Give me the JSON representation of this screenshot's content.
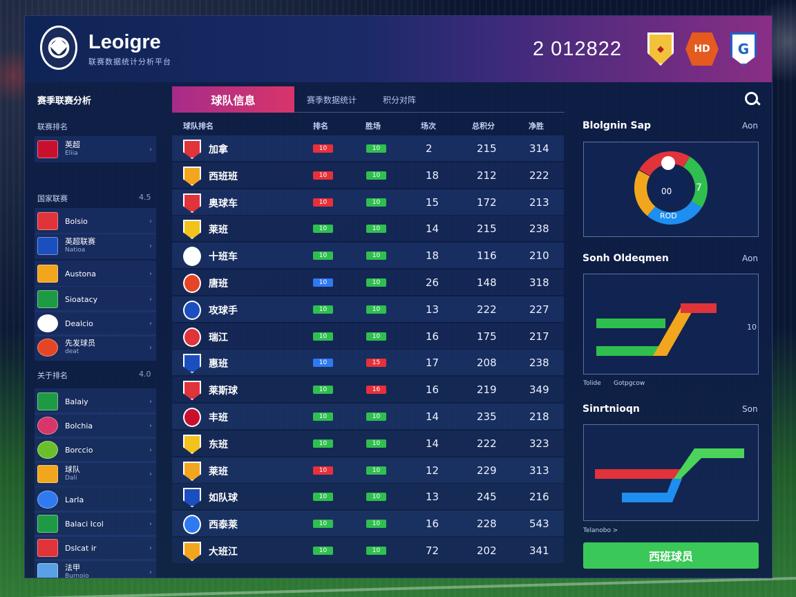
{
  "header": {
    "brand": "Leoigre",
    "subtitle": "联赛数据统计分析平台",
    "score": "2 012822",
    "badges": [
      "shield-badge",
      "orange-club-badge",
      "blue-club-badge"
    ],
    "badge_text": [
      "◆",
      "HD",
      "G"
    ]
  },
  "sidebar": {
    "title": "赛季联赛分析",
    "sections": [
      {
        "label": "联赛排名",
        "count": "",
        "items": [
          {
            "name": "英超",
            "sub": "Eliia",
            "color": "#c8102e",
            "round": false
          }
        ]
      },
      {
        "label": "国家联赛",
        "count": "4.5",
        "items": [
          {
            "name": "Bolsio",
            "sub": "",
            "color": "#e0333a",
            "round": false
          },
          {
            "name": "英超联赛",
            "sub": "Natioa",
            "color": "#1b4fbf",
            "round": false
          },
          {
            "name": "Austona",
            "sub": "",
            "color": "#f2a61d",
            "round": false
          },
          {
            "name": "Sioatacy",
            "sub": "",
            "color": "#1f9a44",
            "round": false
          },
          {
            "name": "Dealcio",
            "sub": "",
            "color": "#ffffff",
            "round": true
          },
          {
            "name": "先发球员",
            "sub": "deat",
            "color": "#e64525",
            "round": true
          }
        ]
      },
      {
        "label": "关于排名",
        "count": "4.0",
        "items": [
          {
            "name": "Balaiy",
            "sub": "",
            "color": "#1f9a44",
            "round": false
          },
          {
            "name": "Bolchia",
            "sub": "",
            "color": "#d8356a",
            "round": true
          },
          {
            "name": "Borccio",
            "sub": "",
            "color": "#6bbf2a",
            "round": true
          },
          {
            "name": "球队",
            "sub": "Dali",
            "color": "#f2a61d",
            "round": false
          },
          {
            "name": "Larla",
            "sub": "",
            "color": "#2f7af0",
            "round": true
          },
          {
            "name": "Balaci Icol",
            "sub": "",
            "color": "#1f9a44",
            "round": false
          },
          {
            "name": "Dslcat ir",
            "sub": "",
            "color": "#e0333a",
            "round": false
          },
          {
            "name": "法甲",
            "sub": "Burnoio",
            "color": "#5aa0e6",
            "round": false
          }
        ]
      }
    ]
  },
  "tabs": {
    "active": "球队信息",
    "others": [
      "赛季数据统计",
      "积分对阵"
    ]
  },
  "table": {
    "columns": [
      "球队排名",
      "排名",
      "胜场",
      "场次",
      "总积分",
      "净胜"
    ],
    "rows": [
      {
        "team": "加拿",
        "crest": "#e0333a",
        "round": false,
        "w": "10",
        "wc": "red",
        "d": "10",
        "dc": "green",
        "rank": "2",
        "pts": "215",
        "gd": "314"
      },
      {
        "team": "西班班",
        "crest": "#f2a61d",
        "round": false,
        "w": "10",
        "wc": "red",
        "d": "10",
        "dc": "green",
        "rank": "18",
        "pts": "212",
        "gd": "222"
      },
      {
        "team": "奥球车",
        "crest": "#e0333a",
        "round": false,
        "w": "10",
        "wc": "red",
        "d": "10",
        "dc": "green",
        "rank": "15",
        "pts": "172",
        "gd": "213"
      },
      {
        "team": "莱班",
        "crest": "#f2c21d",
        "round": false,
        "w": "10",
        "wc": "green",
        "d": "10",
        "dc": "green",
        "rank": "14",
        "pts": "215",
        "gd": "238"
      },
      {
        "team": "十班车",
        "crest": "#ffffff",
        "round": true,
        "w": "10",
        "wc": "green",
        "d": "10",
        "dc": "green",
        "rank": "18",
        "pts": "116",
        "gd": "210"
      },
      {
        "team": "唐班",
        "crest": "#e64525",
        "round": true,
        "w": "10",
        "wc": "blue",
        "d": "10",
        "dc": "green",
        "rank": "26",
        "pts": "148",
        "gd": "318"
      },
      {
        "team": "攻球手",
        "crest": "#1b4fbf",
        "round": true,
        "w": "10",
        "wc": "green",
        "d": "10",
        "dc": "green",
        "rank": "13",
        "pts": "222",
        "gd": "227"
      },
      {
        "team": "瑞江",
        "crest": "#e0333a",
        "round": true,
        "w": "10",
        "wc": "green",
        "d": "10",
        "dc": "green",
        "rank": "16",
        "pts": "175",
        "gd": "217"
      },
      {
        "team": "惠班",
        "crest": "#1b4fbf",
        "round": false,
        "w": "10",
        "wc": "blue",
        "d": "15",
        "dc": "red",
        "rank": "17",
        "pts": "208",
        "gd": "238"
      },
      {
        "team": "莱斯球",
        "crest": "#e0333a",
        "round": false,
        "w": "10",
        "wc": "green",
        "d": "16",
        "dc": "red",
        "rank": "16",
        "pts": "219",
        "gd": "349"
      },
      {
        "team": "丰班",
        "crest": "#c8102e",
        "round": true,
        "w": "10",
        "wc": "green",
        "d": "10",
        "dc": "green",
        "rank": "14",
        "pts": "235",
        "gd": "218"
      },
      {
        "team": "东班",
        "crest": "#f2c21d",
        "round": false,
        "w": "10",
        "wc": "green",
        "d": "10",
        "dc": "green",
        "rank": "14",
        "pts": "222",
        "gd": "323"
      },
      {
        "team": "莱班",
        "crest": "#f2a61d",
        "round": false,
        "w": "10",
        "wc": "red",
        "d": "10",
        "dc": "green",
        "rank": "12",
        "pts": "229",
        "gd": "313"
      },
      {
        "team": "如队球",
        "crest": "#1b4fbf",
        "round": false,
        "w": "10",
        "wc": "green",
        "d": "10",
        "dc": "green",
        "rank": "13",
        "pts": "245",
        "gd": "216"
      },
      {
        "team": "西泰莱",
        "crest": "#2f7af0",
        "round": true,
        "w": "10",
        "wc": "green",
        "d": "10",
        "dc": "green",
        "rank": "16",
        "pts": "228",
        "gd": "543"
      },
      {
        "team": "大班江",
        "crest": "#f2a61d",
        "round": false,
        "w": "10",
        "wc": "green",
        "d": "10",
        "dc": "green",
        "rank": "72",
        "pts": "202",
        "gd": "341"
      }
    ]
  },
  "right_panel": {
    "sections": [
      {
        "title": "Blolgnin Sap",
        "meta": "Aon",
        "labels": [
          "00",
          "7",
          "ROD"
        ]
      },
      {
        "title": "Sonh Oldeqmen",
        "meta": "Aon",
        "labels": [
          "10",
          "Tolide",
          "Gotpgcow"
        ]
      },
      {
        "title": "Sinrtnioqn",
        "meta": "Son",
        "labels": [
          "Telanobo >"
        ]
      }
    ],
    "cta": "西班球员"
  }
}
